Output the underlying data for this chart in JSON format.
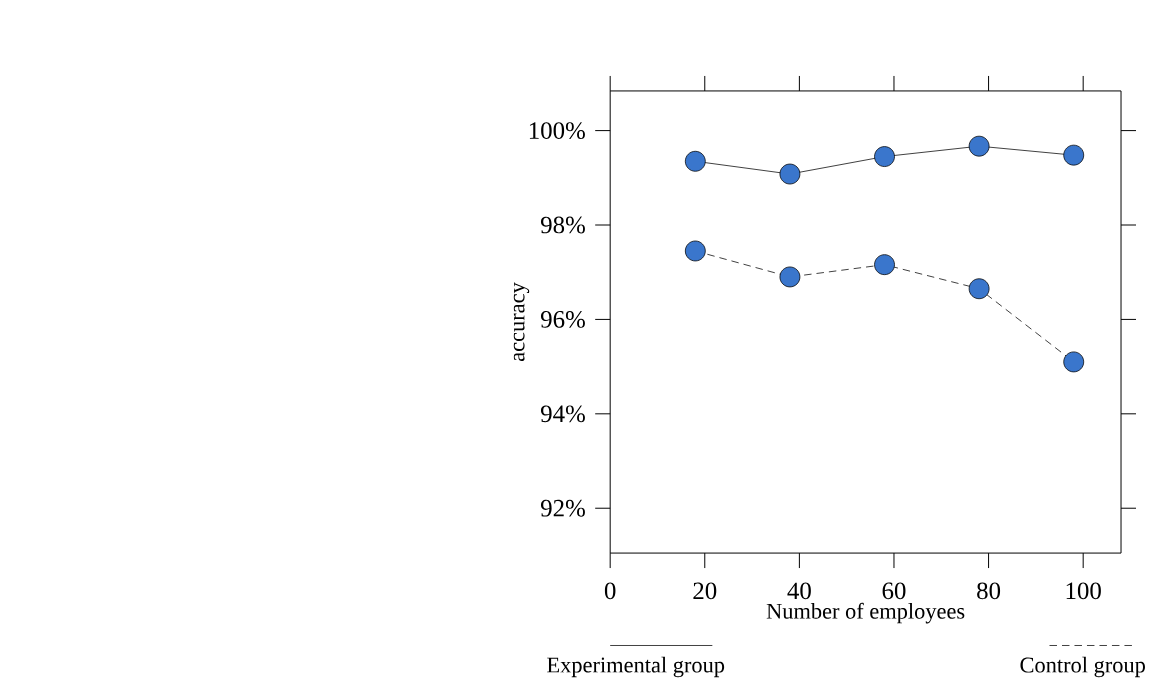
{
  "chart_data": {
    "type": "line",
    "xlabel": "Number of employees",
    "ylabel": "accuracy",
    "x": [
      18,
      38,
      58,
      78,
      98
    ],
    "series": [
      {
        "name": "Experimental group",
        "color": "#3a76cc",
        "line_style": "solid",
        "values": [
          99.35,
          99.08,
          99.45,
          99.67,
          99.48
        ]
      },
      {
        "name": "Control group",
        "color": "#3a76cc",
        "line_style": "dashed",
        "values": [
          97.45,
          96.9,
          97.16,
          96.65,
          95.1
        ]
      }
    ],
    "xlim": [
      0,
      108
    ],
    "xticks": [
      0,
      20,
      40,
      60,
      80,
      100
    ],
    "ylim": [
      91.05,
      100.84
    ],
    "yticks": [
      {
        "value": 92,
        "label": "92%"
      },
      {
        "value": 94,
        "label": "94%"
      },
      {
        "value": 96,
        "label": "96%"
      },
      {
        "value": 98,
        "label": "98%"
      },
      {
        "value": 100,
        "label": "100%"
      }
    ],
    "marker": "circle",
    "legend": "bottom"
  }
}
